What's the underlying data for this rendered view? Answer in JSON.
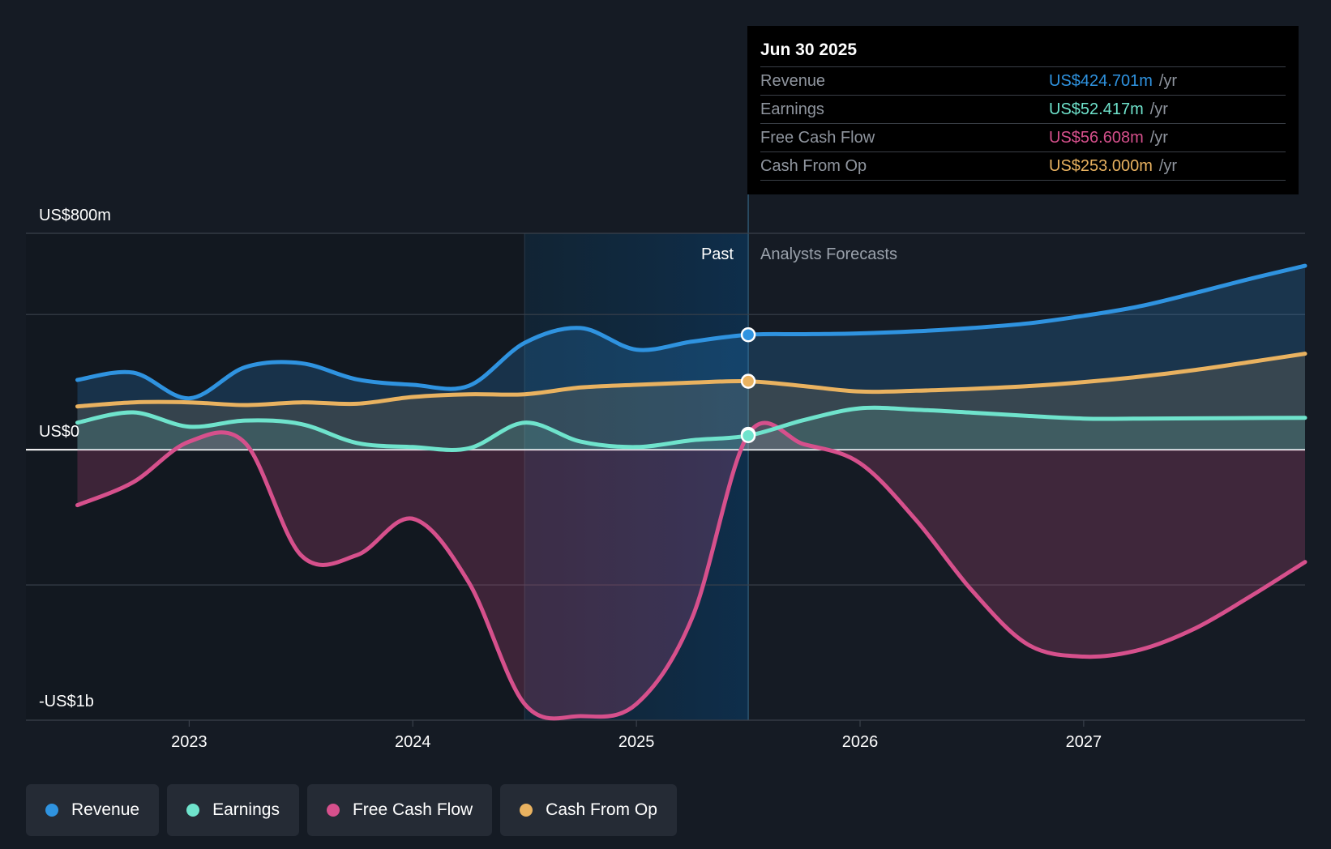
{
  "colors": {
    "revenue": "#2f93e0",
    "earnings": "#6fe3cc",
    "free_cash_flow": "#d6508c",
    "cash_from_op": "#e9b260"
  },
  "tooltip": {
    "date": "Jun 30 2025",
    "rows": [
      {
        "name": "Revenue",
        "value": "US$424.701m",
        "unit": "/yr"
      },
      {
        "name": "Earnings",
        "value": "US$52.417m",
        "unit": "/yr"
      },
      {
        "name": "Free Cash Flow",
        "value": "US$56.608m",
        "unit": "/yr"
      },
      {
        "name": "Cash From Op",
        "value": "US$253.000m",
        "unit": "/yr"
      }
    ]
  },
  "legend": [
    "Revenue",
    "Earnings",
    "Free Cash Flow",
    "Cash From Op"
  ],
  "chart_data": {
    "type": "area",
    "title": "",
    "y_axis_labels": [
      "US$800m",
      "US$0",
      "-US$1b"
    ],
    "period_labels": {
      "past": "Past",
      "forecast": "Analysts Forecasts"
    },
    "x_tick_labels": [
      "2023",
      "2024",
      "2025",
      "2026",
      "2027"
    ],
    "x_ticks": [
      2023,
      2024,
      2025,
      2026,
      2027
    ],
    "xlim": [
      2022.27,
      2027.99
    ],
    "ylim": [
      -1000,
      800
    ],
    "gridlines": [
      800,
      500,
      0,
      -500,
      -1000
    ],
    "past_end": 2025.5,
    "highlight_start": 2024.5,
    "marker_x": 2025.5,
    "series": [
      {
        "name": "Revenue",
        "key": "revenue",
        "x": [
          2022.5,
          2022.75,
          2023.0,
          2023.25,
          2023.5,
          2023.75,
          2024.0,
          2024.25,
          2024.5,
          2024.75,
          2025.0,
          2025.25,
          2025.5,
          2025.75,
          2026.0,
          2026.25,
          2026.5,
          2026.75,
          2027.0,
          2027.25,
          2027.5,
          2027.75,
          2027.99
        ],
        "values": [
          258,
          285,
          190,
          305,
          320,
          260,
          240,
          236,
          395,
          450,
          370,
          400,
          425,
          427,
          430,
          438,
          450,
          467,
          495,
          530,
          580,
          633,
          680
        ]
      },
      {
        "name": "Earnings",
        "key": "earnings",
        "x": [
          2022.5,
          2022.75,
          2023.0,
          2023.25,
          2023.5,
          2023.75,
          2024.0,
          2024.25,
          2024.5,
          2024.75,
          2025.0,
          2025.25,
          2025.5,
          2025.75,
          2026.0,
          2026.25,
          2026.5,
          2026.75,
          2027.0,
          2027.25,
          2027.5,
          2027.75,
          2027.99
        ],
        "values": [
          100,
          138,
          85,
          108,
          95,
          25,
          10,
          5,
          100,
          30,
          10,
          35,
          52,
          110,
          153,
          148,
          137,
          125,
          115,
          115,
          116,
          117,
          118
        ]
      },
      {
        "name": "Free Cash Flow",
        "key": "free_cash_flow",
        "x": [
          2022.5,
          2022.75,
          2023.0,
          2023.25,
          2023.5,
          2023.75,
          2024.0,
          2024.25,
          2024.5,
          2024.75,
          2025.0,
          2025.25,
          2025.5,
          2025.75,
          2026.0,
          2026.25,
          2026.5,
          2026.75,
          2027.0,
          2027.25,
          2027.5,
          2027.75,
          2027.99
        ],
        "values": [
          -205,
          -120,
          30,
          25,
          -390,
          -390,
          -255,
          -490,
          -940,
          -985,
          -940,
          -620,
          57,
          20,
          -50,
          -260,
          -520,
          -720,
          -765,
          -740,
          -660,
          -540,
          -415
        ]
      },
      {
        "name": "Cash From Op",
        "key": "cash_from_op",
        "x": [
          2022.5,
          2022.75,
          2023.0,
          2023.25,
          2023.5,
          2023.75,
          2024.0,
          2024.25,
          2024.5,
          2024.75,
          2025.0,
          2025.25,
          2025.5,
          2025.75,
          2026.0,
          2026.25,
          2026.5,
          2026.75,
          2027.0,
          2027.25,
          2027.5,
          2027.75,
          2027.99
        ],
        "values": [
          160,
          175,
          175,
          165,
          175,
          170,
          195,
          205,
          205,
          230,
          240,
          248,
          253,
          235,
          215,
          218,
          225,
          235,
          250,
          270,
          295,
          325,
          355
        ]
      }
    ]
  }
}
